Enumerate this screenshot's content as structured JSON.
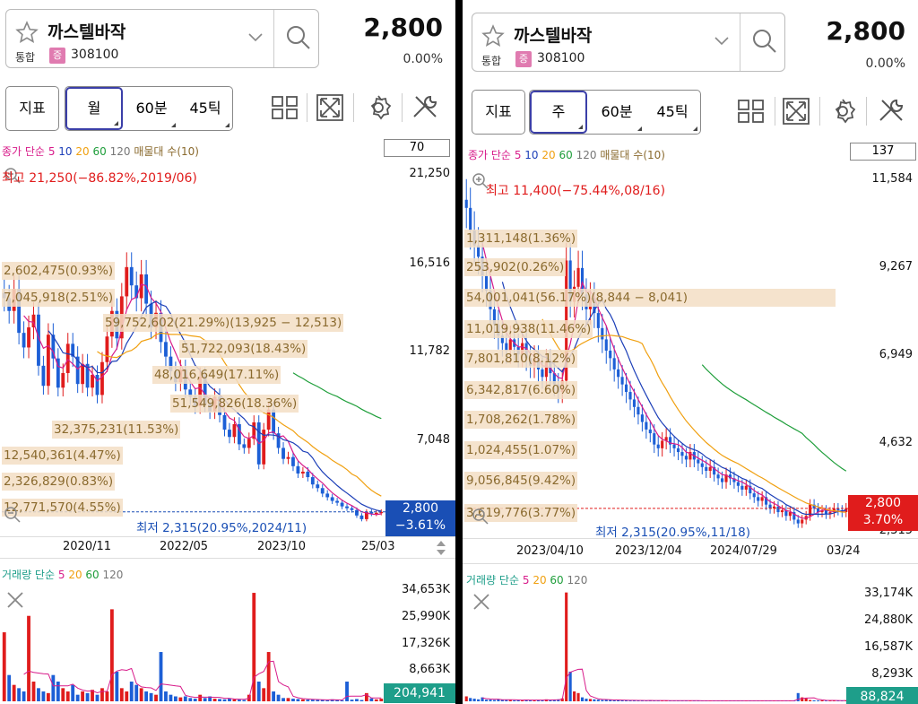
{
  "left": {
    "stock": {
      "name": "까스텔바작",
      "market": "통합",
      "market_badge": "증",
      "code": "308100",
      "price": "2,800",
      "change": "0.00%"
    },
    "toolbar": {
      "indicator": "지표",
      "period_selected": "월",
      "period_2": "60분",
      "period_3": "45틱"
    },
    "ma_legend": {
      "prefix": "종가 단순",
      "n5": "5",
      "n10": "10",
      "n20": "20",
      "n60": "60",
      "n120": "120",
      "suffix": "매물대 수(10)"
    },
    "count_box": "70",
    "high_label": "최고 21,250(−86.82%,2019/06)",
    "low_label": "최저 2,315(20.95%,2024/11)",
    "price_badge": {
      "price": "2,800",
      "change": "−3.61%",
      "color": "#1a4fb5"
    },
    "volume_legend": {
      "prefix": "거래량 단순",
      "n5": "5",
      "n20": "20",
      "n60": "60",
      "n120": "120"
    },
    "volume_badge": "204,941",
    "chart_data": {
      "type": "candlestick",
      "y_ticks": [
        "21,250",
        "16,516",
        "11,782",
        "7,048"
      ],
      "x_ticks": [
        "2020/11",
        "2022/05",
        "2023/10",
        "25/03"
      ],
      "volume_ticks": [
        "34,653K",
        "25,990K",
        "17,326K",
        "8,663K"
      ],
      "volume_profile": [
        "2,602,475(0.93%)",
        "7,045,918(2.51%)",
        "59,752,602(21.29%)(13,925 − 12,513)",
        "51,722,093(18.43%)",
        "48,016,649(17.11%)",
        "51,549,826(18.36%)",
        "32,375,231(11.53%)",
        "12,540,361(4.47%)",
        "2,326,829(0.83%)",
        "12,771,570(4.55%)"
      ],
      "close": [
        14500,
        13800,
        15000,
        12600,
        11800,
        12900,
        13600,
        10800,
        9700,
        12500,
        11200,
        9600,
        10400,
        12000,
        11300,
        9800,
        10900,
        9600,
        10300,
        9200,
        11000,
        12400,
        13800,
        12300,
        14600,
        16200,
        15200,
        14500,
        15800,
        14200,
        12900,
        13700,
        12100,
        11300,
        10500,
        9900,
        10600,
        9500,
        9100,
        8600,
        10200,
        8700,
        8300,
        9100,
        8100,
        7300,
        6900,
        7600,
        6500,
        6300,
        6800,
        7700,
        5400,
        7300,
        8400,
        7100,
        6300,
        5700,
        5800,
        5300,
        4900,
        5000,
        4700,
        4300,
        4100,
        3800,
        3600,
        3400,
        3300,
        3100,
        3000,
        2900,
        2600,
        2400,
        2800,
        2700,
        2750,
        2800
      ],
      "volume": [
        21000,
        8000,
        5000,
        4000,
        3000,
        26000,
        6000,
        4000,
        3000,
        2500,
        8000,
        6000,
        4000,
        3000,
        5000,
        2000,
        3000,
        2500,
        3500,
        2000,
        4000,
        3000,
        28000,
        9000,
        4000,
        3000,
        6000,
        5000,
        4000,
        3000,
        2500,
        2000,
        15000,
        3000,
        2000,
        1500,
        1200,
        1500,
        1000,
        800,
        2000,
        1000,
        1500,
        800,
        700,
        600,
        900,
        600,
        500,
        400,
        2000,
        33000,
        6000,
        4000,
        15000,
        3000,
        2000,
        1000,
        1000,
        800,
        700,
        600,
        500,
        500,
        400,
        500,
        300,
        600,
        400,
        300,
        6000,
        500,
        700,
        400,
        2500,
        900,
        600,
        800
      ]
    }
  },
  "right": {
    "stock": {
      "name": "까스텔바작",
      "market": "통합",
      "market_badge": "증",
      "code": "308100",
      "price": "2,800",
      "change": "0.00%"
    },
    "toolbar": {
      "indicator": "지표",
      "period_selected": "주",
      "period_2": "60분",
      "period_3": "45틱"
    },
    "ma_legend": {
      "prefix": "종가 단순",
      "n5": "5",
      "n10": "10",
      "n20": "20",
      "n60": "60",
      "n120": "120",
      "suffix": "매물대 수(10)"
    },
    "count_box": "137",
    "high_label": "최고 11,400(−75.44%,08/16)",
    "low_label": "최저 2,315(20.95%,11/18)",
    "price_badge": {
      "price": "2,800",
      "change": "3.70%",
      "color": "#e01c1c"
    },
    "volume_legend": {
      "prefix": "거래량 단순",
      "n5": "5",
      "n20": "20",
      "n60": "60",
      "n120": "120"
    },
    "volume_badge": "88,824",
    "chart_data": {
      "type": "candlestick",
      "y_ticks": [
        "11,584",
        "9,267",
        "6,949",
        "4,632",
        "2,315"
      ],
      "x_ticks": [
        "2023/04/10",
        "2023/12/04",
        "2024/07/29",
        "03/24"
      ],
      "volume_ticks": [
        "33,174K",
        "24,880K",
        "16,587K",
        "8,293K"
      ],
      "volume_profile": [
        "1,311,148(1.36%)",
        "253,902(0.26%)",
        "54,001,041(56.17%)(8,844 − 8,041)",
        "11,019,938(11.46%)",
        "7,801,810(8.12%)",
        "6,342,817(6.60%)",
        "1,708,262(1.78%)",
        "1,024,455(1.07%)",
        "9,056,845(9.42%)",
        "3,619,776(3.77%)"
      ],
      "close": [
        10800,
        10200,
        9800,
        9500,
        9000,
        8600,
        8100,
        7700,
        7400,
        7200,
        7000,
        7300,
        7100,
        6900,
        7200,
        6800,
        6600,
        6800,
        6500,
        6300,
        6700,
        6400,
        6100,
        5900,
        6200,
        9400,
        8300,
        8700,
        9200,
        8500,
        8100,
        8400,
        8000,
        7600,
        7300,
        7000,
        6800,
        6500,
        6300,
        6100,
        5900,
        5700,
        5500,
        5300,
        5100,
        4900,
        4800,
        4500,
        4400,
        4600,
        4700,
        4500,
        4400,
        4300,
        4200,
        4100,
        4300,
        4100,
        4000,
        3900,
        3800,
        3900,
        3700,
        3600,
        3500,
        3700,
        3600,
        3500,
        3400,
        3300,
        3400,
        3200,
        3100,
        3000,
        3100,
        2900,
        2800,
        2850,
        2700,
        2750,
        2600,
        2700,
        2500,
        2400,
        2500,
        2600,
        2900,
        2800,
        2700,
        2750,
        2650,
        2700,
        2800,
        2750,
        2700,
        2800
      ],
      "volume": [
        1500,
        1000,
        800,
        600,
        1200,
        500,
        500,
        400,
        600,
        500,
        400,
        500,
        300,
        400,
        300,
        500,
        400,
        300,
        400,
        300,
        600,
        500,
        400,
        600,
        900,
        33000,
        9000,
        3000,
        2500,
        1200,
        800,
        700,
        600,
        500,
        400,
        500,
        400,
        300,
        400,
        300,
        300,
        250,
        300,
        250,
        250,
        200,
        300,
        250,
        200,
        250,
        200,
        200,
        250,
        200,
        200,
        150,
        200,
        150,
        200,
        150,
        150,
        200,
        150,
        150,
        150,
        200,
        150,
        150,
        150,
        150,
        150,
        150,
        150,
        150,
        150,
        150,
        150,
        150,
        150,
        150,
        150,
        150,
        150,
        2500,
        1200,
        900,
        400,
        300,
        250,
        300,
        200,
        300,
        250,
        200,
        200,
        300
      ]
    }
  }
}
